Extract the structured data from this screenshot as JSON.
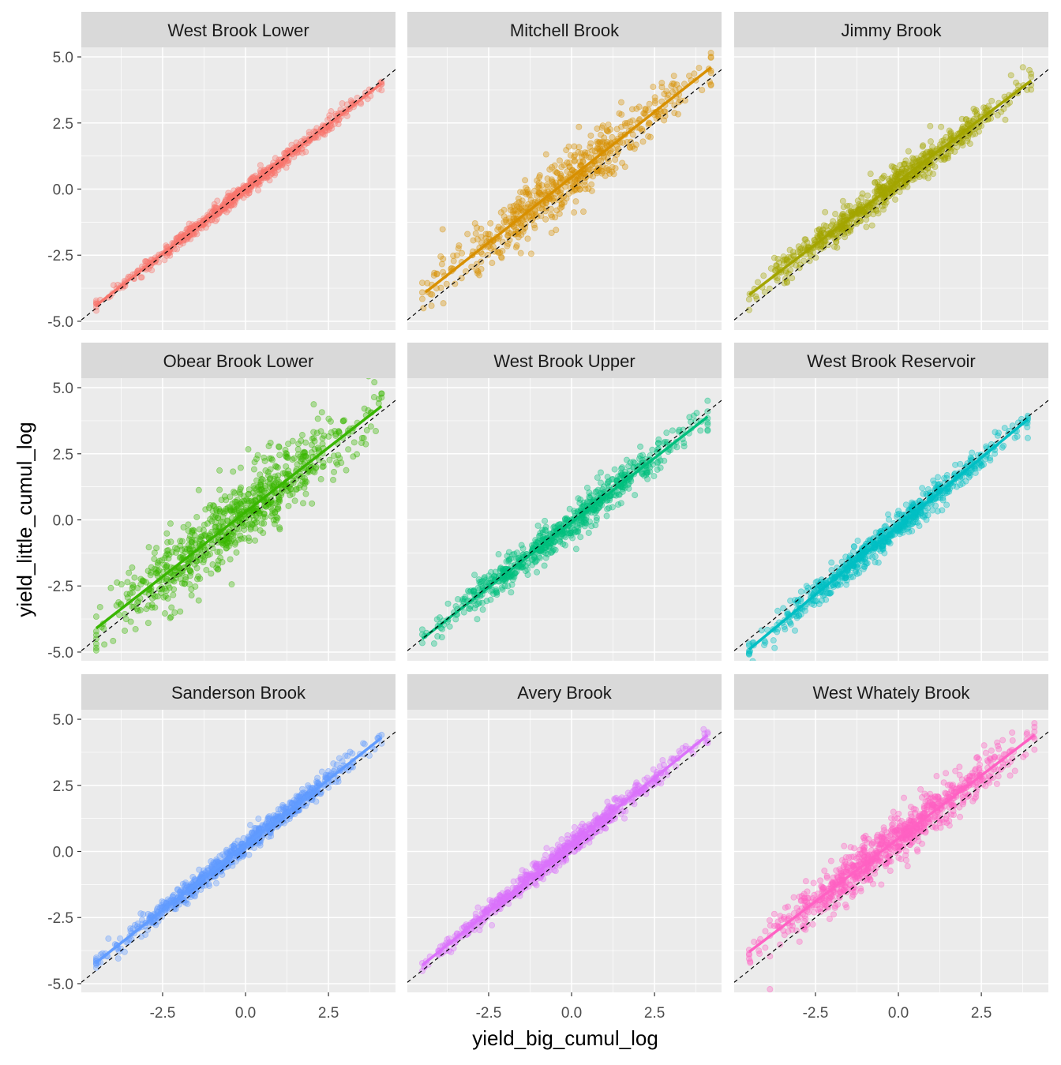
{
  "chart_data": {
    "type": "scatter",
    "layout": "facet_wrap 3x3",
    "xlabel": "yield_big_cumul_log",
    "ylabel": "yield_little_cumul_log",
    "xlim": [
      -4.95,
      4.52
    ],
    "ylim": [
      -5.33,
      5.36
    ],
    "x_ticks": [
      -2.5,
      0.0,
      2.5
    ],
    "x_tick_labels": [
      "-2.5",
      "0.0",
      "2.5"
    ],
    "y_ticks": [
      -5.0,
      -2.5,
      0.0,
      2.5,
      5.0
    ],
    "y_tick_labels": [
      "-5.0",
      "-2.5",
      "0.0",
      "2.5",
      "5.0"
    ],
    "grid": true,
    "reference_line": {
      "slope": 1,
      "intercept": 0,
      "style": "dashed",
      "color": "#000000"
    },
    "panels": [
      {
        "name": "West Brook Lower",
        "color": "#F8766D",
        "x_range": [
          -4.5,
          4.1
        ],
        "fit": [
          [
            -4.5,
            -4.4
          ],
          [
            4.1,
            4.0
          ]
        ],
        "spread_sd": 0.15,
        "n_points": 600
      },
      {
        "name": "Mitchell Brook",
        "color": "#D89000",
        "x_range": [
          -4.5,
          4.2
        ],
        "fit": [
          [
            -4.4,
            -3.9
          ],
          [
            4.2,
            4.6
          ]
        ],
        "spread_sd": 0.55,
        "n_points": 600
      },
      {
        "name": "Jimmy Brook",
        "color": "#A3A500",
        "x_range": [
          -4.5,
          4.0
        ],
        "fit": [
          [
            -4.5,
            -4.0
          ],
          [
            4.0,
            4.1
          ]
        ],
        "spread_sd": 0.3,
        "n_points": 700
      },
      {
        "name": "Obear Brook Lower",
        "color": "#39B600",
        "x_range": [
          -4.5,
          4.1
        ],
        "fit": [
          [
            -4.5,
            -4.1
          ],
          [
            4.1,
            4.3
          ]
        ],
        "spread_sd": 0.75,
        "n_points": 800
      },
      {
        "name": "West Brook Upper",
        "color": "#00BF7D",
        "x_range": [
          -4.5,
          4.1
        ],
        "fit": [
          [
            -4.5,
            -4.5
          ],
          [
            4.1,
            3.9
          ]
        ],
        "spread_sd": 0.35,
        "n_points": 700
      },
      {
        "name": "West Brook Reservoir",
        "color": "#00BFC4",
        "x_range": [
          -4.5,
          3.9
        ],
        "fit": [
          [
            -4.5,
            -4.9
          ],
          [
            3.9,
            3.8
          ]
        ],
        "spread_sd": 0.28,
        "n_points": 700
      },
      {
        "name": "Sanderson Brook",
        "color": "#619CFF",
        "x_range": [
          -4.5,
          4.1
        ],
        "fit": [
          [
            -4.5,
            -4.2
          ],
          [
            4.1,
            4.3
          ]
        ],
        "spread_sd": 0.2,
        "n_points": 800
      },
      {
        "name": "Avery Brook",
        "color": "#DB72FB",
        "x_range": [
          -4.5,
          4.1
        ],
        "fit": [
          [
            -4.5,
            -4.3
          ],
          [
            4.1,
            4.4
          ]
        ],
        "spread_sd": 0.2,
        "n_points": 700
      },
      {
        "name": "West Whately Brook",
        "color": "#FF61C3",
        "x_range": [
          -4.5,
          4.1
        ],
        "fit": [
          [
            -4.5,
            -3.8
          ],
          [
            4.1,
            4.4
          ]
        ],
        "spread_sd": 0.45,
        "n_points": 900
      }
    ]
  }
}
